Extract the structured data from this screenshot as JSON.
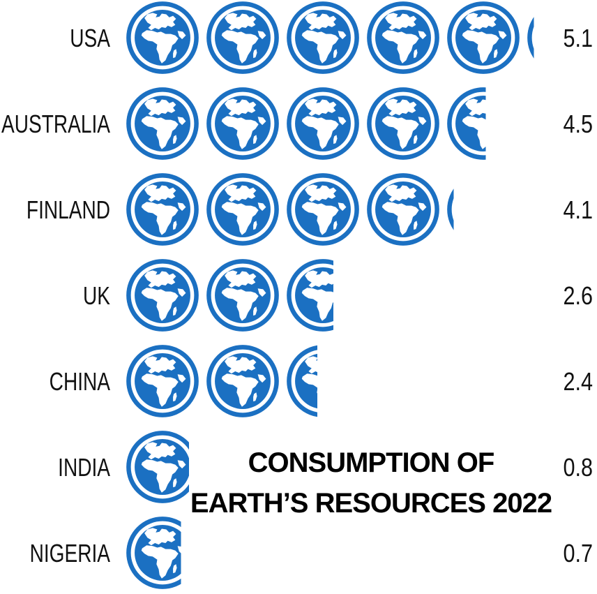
{
  "chart_data": {
    "type": "bar",
    "title_lines": [
      "CONSUMPTION OF",
      "EARTH’S RESOURCES 2022"
    ],
    "unit_icon": "globe-africa-europe-icon",
    "categories": [
      "USA",
      "AUSTRALIA",
      "FINLAND",
      "UK",
      "CHINA",
      "INDIA",
      "NIGERIA"
    ],
    "values": [
      5.1,
      4.5,
      4.1,
      2.6,
      2.4,
      0.8,
      0.7
    ],
    "value_labels": [
      "5.1",
      "4.5",
      "4.1",
      "2.6",
      "2.4",
      "0.8",
      "0.7"
    ],
    "orientation": "horizontal",
    "legend": "none",
    "grid": false
  },
  "colors": {
    "globe": "#1b70c2",
    "text": "#111111",
    "background": "#ffffff"
  }
}
